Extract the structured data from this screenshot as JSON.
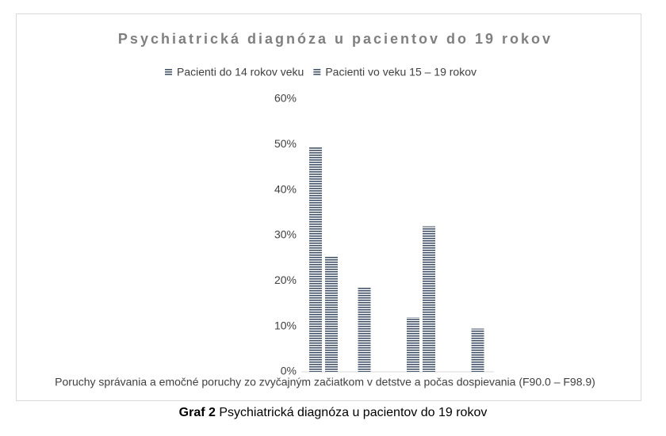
{
  "chart_data": {
    "type": "bar",
    "title": "Psychiatrická diagnóza u pacientov do 19 rokov",
    "categories": [
      "Poruchy správania a emočné poruchy zo zvyčajným začiatkom v detstve a počas dospievania (F90.0 – F98.9)",
      null,
      null,
      null
    ],
    "series": [
      {
        "name": "Pacienti do 14 rokov veku",
        "color": "#44546a",
        "values": [
          49.5,
          18.5,
          12,
          null
        ]
      },
      {
        "name": "Pacienti vo veku 15 – 19 rokov",
        "color": "#44546a",
        "values": [
          25.3,
          null,
          32,
          9.5
        ]
      }
    ],
    "ylim": [
      0,
      60
    ],
    "yticks": [
      {
        "value": 0,
        "label": "0%"
      },
      {
        "value": 10,
        "label": "10%"
      },
      {
        "value": 20,
        "label": "20%"
      },
      {
        "value": 30,
        "label": "30%"
      },
      {
        "value": 40,
        "label": "40%"
      },
      {
        "value": 50,
        "label": "50%"
      },
      {
        "value": 60,
        "label": "60%"
      }
    ],
    "legend": "top"
  },
  "caption": {
    "label": "Graf 2",
    "text": "Psychiatrická diagnóza u pacientov do 19 rokov"
  }
}
